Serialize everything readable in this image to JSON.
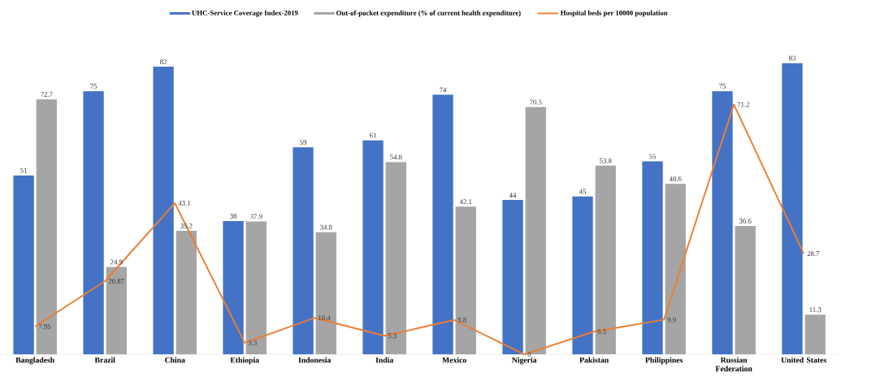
{
  "chart_data": {
    "type": "bar",
    "categories": [
      "Bangladesh",
      "Brazil",
      "China",
      "Ethiopia",
      "Indonesia",
      "India",
      "Mexico",
      "Nigeria",
      "Pakistan",
      "Philippines",
      "Russian Federation",
      "United States"
    ],
    "series": [
      {
        "name": "UHC-Service Coverage Index-2019",
        "color": "#4472c4",
        "values": [
          51,
          75,
          82,
          38,
          59,
          61,
          74,
          44,
          45,
          55,
          75,
          83
        ]
      },
      {
        "name": "Out-of-pocket expenditure (% of current health expenditure)",
        "color": "#a5a5a5",
        "values": [
          72.7,
          24.9,
          35.2,
          37.9,
          34.8,
          54.8,
          42.1,
          70.5,
          53.8,
          48.6,
          36.6,
          11.3
        ]
      },
      {
        "name": "Hospital beds per 10000 population",
        "type": "line",
        "color": "#ed7d31",
        "values": [
          7.95,
          20.87,
          43.1,
          3.3,
          10.4,
          5.3,
          9.8,
          0,
          6.5,
          9.9,
          71.2,
          28.7
        ]
      }
    ],
    "data_labels": true,
    "legend": "top"
  }
}
